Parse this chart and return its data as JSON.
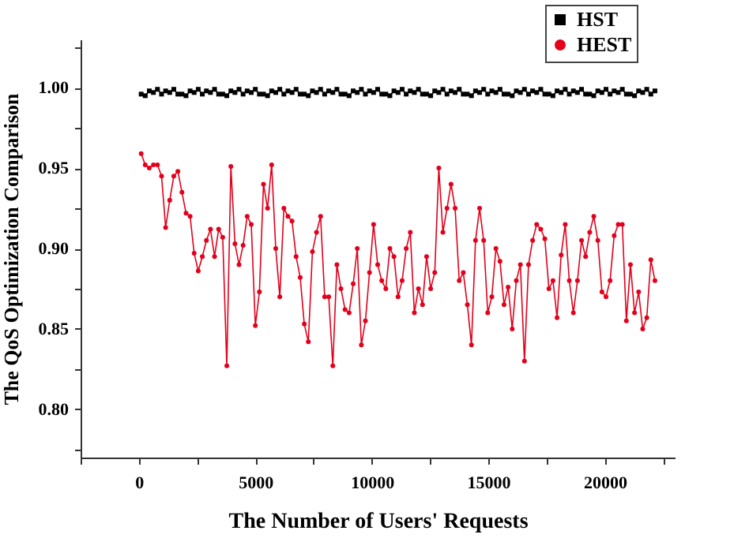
{
  "chart_data": {
    "type": "line",
    "xlabel": "The Number of Users' Requests",
    "ylabel": "The QoS Optimization Comparison",
    "x": [
      100,
      275,
      450,
      625,
      800,
      975,
      1150,
      1325,
      1500,
      1675,
      1850,
      2025,
      2200,
      2375,
      2550,
      2725,
      2900,
      3075,
      3250,
      3425,
      3600,
      3775,
      3950,
      4125,
      4300,
      4475,
      4650,
      4825,
      5000,
      5175,
      5350,
      5525,
      5700,
      5875,
      6050,
      6225,
      6400,
      6575,
      6750,
      6925,
      7100,
      7275,
      7450,
      7625,
      7800,
      7975,
      8150,
      8325,
      8500,
      8675,
      8850,
      9025,
      9200,
      9375,
      9550,
      9725,
      9900,
      10075,
      10250,
      10425,
      10600,
      10775,
      10950,
      11125,
      11300,
      11475,
      11650,
      11825,
      12000,
      12175,
      12350,
      12525,
      12700,
      12875,
      13050,
      13225,
      13400,
      13575,
      13750,
      13925,
      14100,
      14275,
      14450,
      14625,
      14800,
      14975,
      15150,
      15325,
      15500,
      15675,
      15850,
      16025,
      16200,
      16375,
      16550,
      16725,
      16900,
      17075,
      17250,
      17425,
      17600,
      17775,
      17950,
      18125,
      18300,
      18475,
      18650,
      18825,
      19000,
      19175,
      19350,
      19525,
      19700,
      19875,
      20050,
      20225,
      20400,
      20575,
      20750,
      20925,
      21100,
      21275,
      21450,
      21625,
      21800,
      21975,
      22150
    ],
    "series": [
      {
        "name": "HST",
        "color": "#000000",
        "marker": "square",
        "values": [
          0.996,
          0.995,
          0.998,
          0.997,
          0.999,
          0.996,
          0.998,
          0.997,
          0.999,
          0.996,
          0.996,
          0.995,
          0.998,
          0.997,
          0.999,
          0.996,
          0.998,
          0.997,
          0.999,
          0.996,
          0.996,
          0.995,
          0.998,
          0.997,
          0.999,
          0.996,
          0.998,
          0.997,
          0.999,
          0.996,
          0.996,
          0.995,
          0.998,
          0.997,
          0.999,
          0.996,
          0.998,
          0.997,
          0.999,
          0.996,
          0.996,
          0.995,
          0.998,
          0.997,
          0.999,
          0.996,
          0.998,
          0.997,
          0.999,
          0.996,
          0.996,
          0.995,
          0.998,
          0.997,
          0.999,
          0.996,
          0.998,
          0.997,
          0.999,
          0.996,
          0.996,
          0.995,
          0.998,
          0.997,
          0.999,
          0.996,
          0.998,
          0.997,
          0.999,
          0.996,
          0.996,
          0.995,
          0.998,
          0.997,
          0.999,
          0.996,
          0.998,
          0.997,
          0.999,
          0.996,
          0.996,
          0.995,
          0.998,
          0.997,
          0.999,
          0.996,
          0.998,
          0.997,
          0.999,
          0.996,
          0.996,
          0.995,
          0.998,
          0.997,
          0.999,
          0.996,
          0.998,
          0.997,
          0.999,
          0.996,
          0.996,
          0.995,
          0.998,
          0.997,
          0.999,
          0.996,
          0.998,
          0.997,
          0.999,
          0.996,
          0.996,
          0.995,
          0.998,
          0.997,
          0.999,
          0.996,
          0.998,
          0.997,
          0.999,
          0.996,
          0.996,
          0.995,
          0.998,
          0.997,
          0.999,
          0.996,
          0.998
        ]
      },
      {
        "name": "HEST",
        "color": "#e3001b",
        "marker": "circle",
        "values": [
          0.959,
          0.952,
          0.95,
          0.952,
          0.952,
          0.945,
          0.913,
          0.93,
          0.945,
          0.948,
          0.935,
          0.922,
          0.92,
          0.897,
          0.886,
          0.895,
          0.905,
          0.912,
          0.895,
          0.912,
          0.907,
          0.827,
          0.951,
          0.903,
          0.89,
          0.902,
          0.92,
          0.915,
          0.852,
          0.873,
          0.94,
          0.925,
          0.952,
          0.9,
          0.87,
          0.925,
          0.92,
          0.917,
          0.895,
          0.882,
          0.853,
          0.842,
          0.898,
          0.91,
          0.92,
          0.87,
          0.87,
          0.827,
          0.89,
          0.875,
          0.862,
          0.86,
          0.878,
          0.9,
          0.84,
          0.855,
          0.885,
          0.915,
          0.89,
          0.88,
          0.875,
          0.9,
          0.895,
          0.87,
          0.88,
          0.9,
          0.91,
          0.86,
          0.875,
          0.865,
          0.895,
          0.875,
          0.885,
          0.95,
          0.91,
          0.925,
          0.94,
          0.925,
          0.88,
          0.885,
          0.865,
          0.84,
          0.905,
          0.925,
          0.905,
          0.86,
          0.87,
          0.9,
          0.892,
          0.865,
          0.876,
          0.85,
          0.88,
          0.89,
          0.83,
          0.89,
          0.905,
          0.915,
          0.912,
          0.906,
          0.875,
          0.88,
          0.857,
          0.896,
          0.915,
          0.88,
          0.86,
          0.88,
          0.905,
          0.895,
          0.91,
          0.92,
          0.905,
          0.873,
          0.87,
          0.88,
          0.908,
          0.915,
          0.915,
          0.855,
          0.89,
          0.86,
          0.873,
          0.85,
          0.857,
          0.893,
          0.88
        ]
      }
    ],
    "xlim": [
      -2500,
      23000
    ],
    "xticks": [
      {
        "value": -2500,
        "label": null
      },
      0,
      {
        "value": 2500,
        "label": null
      },
      5000,
      {
        "value": 7500,
        "label": null
      },
      10000,
      {
        "value": 12500,
        "label": null
      },
      15000,
      {
        "value": 17500,
        "label": null
      },
      20000,
      {
        "value": 22500,
        "label": null
      }
    ],
    "ylim": [
      0.77,
      1.03
    ],
    "yticks": [
      {
        "value": 0.775,
        "label": null
      },
      {
        "value": 0.8,
        "label": "0.80"
      },
      {
        "value": 0.825,
        "label": null
      },
      {
        "value": 0.85,
        "label": "0.85"
      },
      {
        "value": 0.875,
        "label": null
      },
      {
        "value": 0.9,
        "label": "0.90"
      },
      {
        "value": 0.925,
        "label": null
      },
      {
        "value": 0.95,
        "label": "0.95"
      },
      {
        "value": 0.975,
        "label": null
      },
      {
        "value": 1.0,
        "label": "1.00"
      },
      {
        "value": 1.025,
        "label": null
      }
    ],
    "legend": "top right",
    "grid": false
  }
}
